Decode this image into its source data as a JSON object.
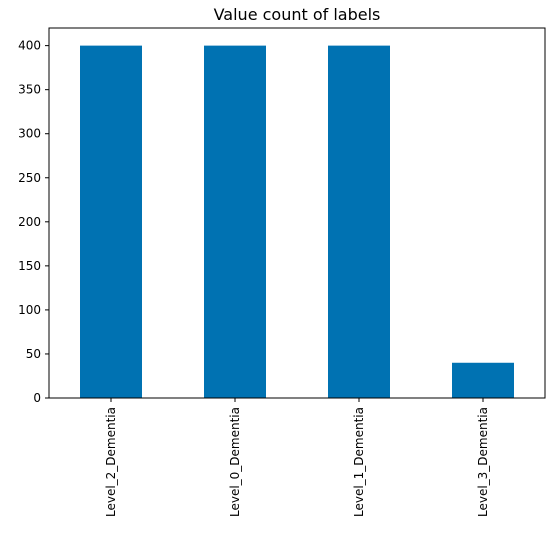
{
  "chart_data": {
    "type": "bar",
    "title": "Value count of labels",
    "xlabel": "",
    "ylabel": "",
    "categories": [
      "Level_2_Dementia",
      "Level_0_Dementia",
      "Level_1_Dementia",
      "Level_3_Dementia"
    ],
    "values": [
      400,
      400,
      400,
      40
    ],
    "ylim": [
      0,
      420
    ],
    "yticks": [
      0,
      50,
      100,
      150,
      200,
      250,
      300,
      350,
      400
    ],
    "bar_color": "#0072b2",
    "grid": false,
    "legend": "none"
  }
}
